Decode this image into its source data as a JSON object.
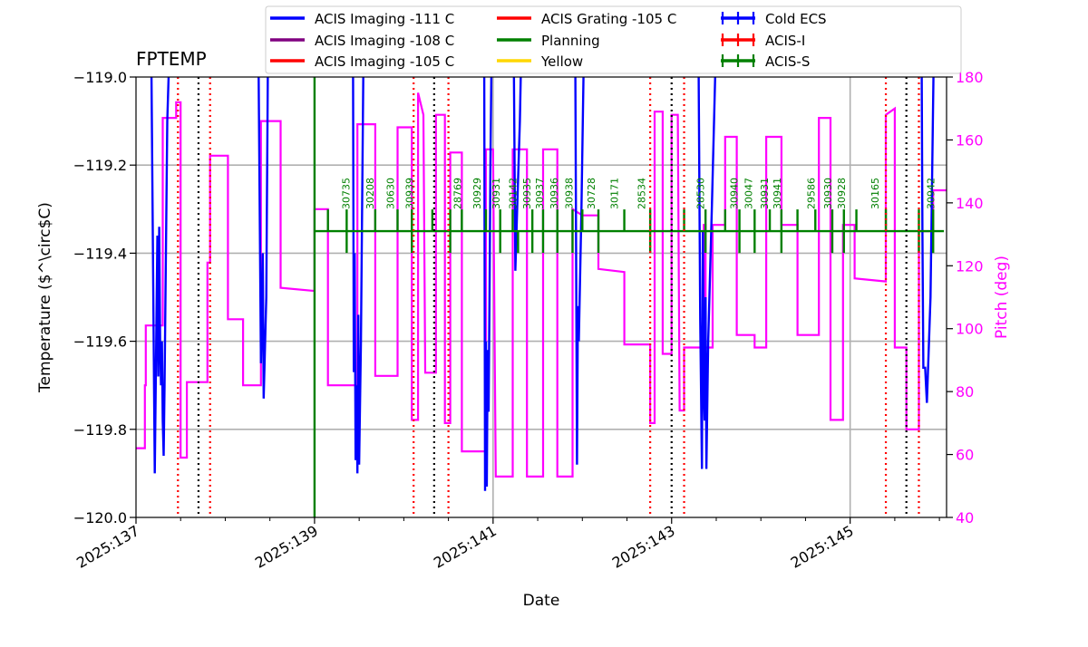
{
  "chart_data": {
    "type": "line",
    "title": "FPTEMP",
    "xlabel": "Date",
    "ylabel": "Temperature ($^\\circ$C)",
    "y2label": "Pitch (deg)",
    "xlim": [
      137,
      146.08
    ],
    "ylim": [
      -120.0,
      -119.0
    ],
    "y2lim": [
      40,
      180
    ],
    "x_ticks": [
      {
        "value": 137,
        "label": "2025:137"
      },
      {
        "value": 139,
        "label": "2025:139"
      },
      {
        "value": 141,
        "label": "2025:141"
      },
      {
        "value": 143,
        "label": "2025:143"
      },
      {
        "value": 145,
        "label": "2025:145"
      }
    ],
    "x_minor_ticks": [
      137.5,
      138,
      138.5,
      139.5,
      140,
      140.5,
      141.5,
      142,
      142.5,
      143.5,
      144,
      144.5,
      145.5,
      146
    ],
    "y_ticks": [
      "−119.0",
      "−119.2",
      "−119.4",
      "−119.6",
      "−119.8",
      "−120.0"
    ],
    "y_tick_values": [
      -119.0,
      -119.2,
      -119.4,
      -119.6,
      -119.8,
      -120.0
    ],
    "y2_ticks": [
      "40",
      "60",
      "80",
      "100",
      "120",
      "140",
      "160",
      "180"
    ],
    "y2_tick_values": [
      40,
      60,
      80,
      100,
      120,
      140,
      160,
      180
    ],
    "grid": true,
    "legend": {
      "placement": "top",
      "entries": [
        {
          "label": "ACIS Imaging -111 C",
          "color": "#0000ff",
          "style": "line"
        },
        {
          "label": "ACIS Imaging -108 C",
          "color": "#800080",
          "style": "line"
        },
        {
          "label": "ACIS Imaging -105 C",
          "color": "#ff0000",
          "style": "line"
        },
        {
          "label": "ACIS Grating -105 C",
          "color": "#ff0000",
          "style": "line"
        },
        {
          "label": "Planning",
          "color": "#008000",
          "style": "line"
        },
        {
          "label": "Yellow",
          "color": "#ffd700",
          "style": "line"
        },
        {
          "label": "Cold ECS",
          "color": "#0000ff",
          "style": "errorbar"
        },
        {
          "label": "ACIS-I",
          "color": "#ff0000",
          "style": "errorbar"
        },
        {
          "label": "ACIS-S",
          "color": "#008000",
          "style": "errorbar"
        }
      ]
    },
    "planning_line": {
      "temperature": -119.35,
      "x_start": 139.0,
      "x_end": 146.05
    },
    "planning_vertical": {
      "x": 139.0
    },
    "black_dotted_lines": [
      137.7,
      140.34,
      143.0,
      145.63
    ],
    "red_dotted_lines": [
      137.47,
      137.83,
      140.11,
      140.5,
      142.76,
      143.14,
      145.4,
      145.77
    ],
    "gray_vertical_lines": [
      141.0,
      145.0
    ],
    "obsids": [
      {
        "label": "30735",
        "x": 139.35
      },
      {
        "label": "30208",
        "x": 139.62
      },
      {
        "label": "30630",
        "x": 139.85
      },
      {
        "label": "30939",
        "x": 140.06
      },
      {
        "label": "28769",
        "x": 140.6
      },
      {
        "label": "30929",
        "x": 140.82
      },
      {
        "label": "30931",
        "x": 141.03
      },
      {
        "label": "30142",
        "x": 141.22
      },
      {
        "label": "30935",
        "x": 141.38
      },
      {
        "label": "30937",
        "x": 141.52
      },
      {
        "label": "30936",
        "x": 141.68
      },
      {
        "label": "30938",
        "x": 141.85
      },
      {
        "label": "30728",
        "x": 142.1
      },
      {
        "label": "30171",
        "x": 142.36
      },
      {
        "label": "28534",
        "x": 142.66
      },
      {
        "label": "28530",
        "x": 143.32
      },
      {
        "label": "30940",
        "x": 143.7
      },
      {
        "label": "30047",
        "x": 143.86
      },
      {
        "label": "30931",
        "x": 144.04
      },
      {
        "label": "30941",
        "x": 144.18
      },
      {
        "label": "29586",
        "x": 144.56
      },
      {
        "label": "30930",
        "x": 144.75
      },
      {
        "label": "30928",
        "x": 144.9
      },
      {
        "label": "30165",
        "x": 145.28
      },
      {
        "label": "30942",
        "x": 145.9
      }
    ],
    "planning_ticks": [
      {
        "x": 139.15,
        "h": "up"
      },
      {
        "x": 139.36,
        "h": "both"
      },
      {
        "x": 139.68,
        "h": "up"
      },
      {
        "x": 139.93,
        "h": "up"
      },
      {
        "x": 140.09,
        "h": "both"
      },
      {
        "x": 140.32,
        "h": "up"
      },
      {
        "x": 140.52,
        "h": "both"
      },
      {
        "x": 140.65,
        "h": "up"
      },
      {
        "x": 140.92,
        "h": "up"
      },
      {
        "x": 141.08,
        "h": "both"
      },
      {
        "x": 141.22,
        "h": "up"
      },
      {
        "x": 141.28,
        "h": "down"
      },
      {
        "x": 141.44,
        "h": "both"
      },
      {
        "x": 141.56,
        "h": "both"
      },
      {
        "x": 141.72,
        "h": "both"
      },
      {
        "x": 141.89,
        "h": "both"
      },
      {
        "x": 142.0,
        "h": "up"
      },
      {
        "x": 142.18,
        "h": "both"
      },
      {
        "x": 142.47,
        "h": "up"
      },
      {
        "x": 142.76,
        "h": "both"
      },
      {
        "x": 143.14,
        "h": "up"
      },
      {
        "x": 143.38,
        "h": "both"
      },
      {
        "x": 143.6,
        "h": "up"
      },
      {
        "x": 143.76,
        "h": "both"
      },
      {
        "x": 143.93,
        "h": "both"
      },
      {
        "x": 144.1,
        "h": "up"
      },
      {
        "x": 144.23,
        "h": "both"
      },
      {
        "x": 144.41,
        "h": "up"
      },
      {
        "x": 144.61,
        "h": "up"
      },
      {
        "x": 144.8,
        "h": "both"
      },
      {
        "x": 144.93,
        "h": "both"
      },
      {
        "x": 145.07,
        "h": "up"
      },
      {
        "x": 145.4,
        "h": "up"
      },
      {
        "x": 145.77,
        "h": "both"
      },
      {
        "x": 145.93,
        "h": "both"
      }
    ],
    "series": [
      {
        "name": "FPTEMP",
        "color": "#0000ff",
        "axis": "left",
        "x": [
          137.17,
          137.21,
          137.24,
          137.25,
          137.26,
          137.27,
          137.28,
          137.29,
          137.3,
          137.31,
          137.32,
          137.35,
          137.38,
          "gap",
          138.37,
          138.4,
          138.42,
          138.43,
          138.46,
          138.48,
          "gap",
          139.43,
          139.44,
          139.45,
          139.46,
          139.47,
          139.48,
          139.49,
          139.5,
          139.52,
          139.55,
          "gap",
          140.9,
          140.91,
          140.92,
          140.93,
          140.94,
          140.95,
          140.96,
          140.97,
          140.98,
          141.0,
          "gap",
          141.23,
          141.25,
          141.27,
          141.3,
          141.32,
          "gap",
          141.92,
          141.94,
          141.95,
          141.96,
          141.99,
          142.02,
          "gap",
          143.3,
          143.32,
          143.34,
          143.35,
          143.36,
          143.37,
          143.38,
          143.39,
          143.41,
          143.45,
          143.5,
          "gap",
          145.8,
          145.81,
          145.82,
          145.84,
          145.86,
          145.9,
          145.94
        ]
      }
    ]
  }
}
